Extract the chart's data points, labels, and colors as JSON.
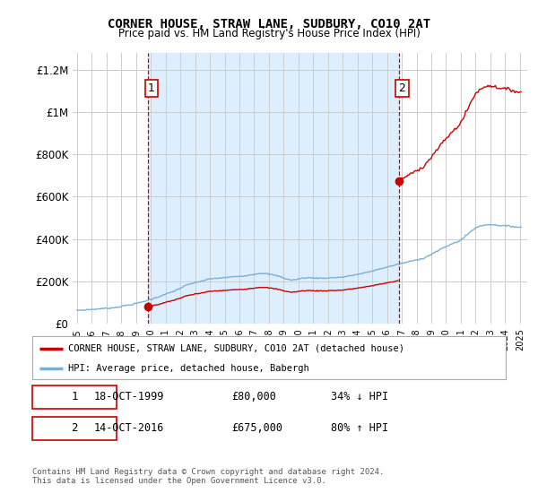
{
  "title": "CORNER HOUSE, STRAW LANE, SUDBURY, CO10 2AT",
  "subtitle": "Price paid vs. HM Land Registry's House Price Index (HPI)",
  "ylabel_ticks": [
    0,
    200000,
    400000,
    600000,
    800000,
    1000000,
    1200000
  ],
  "ylabel_labels": [
    "£0",
    "£200K",
    "£400K",
    "£600K",
    "£800K",
    "£1M",
    "£1.2M"
  ],
  "xlim": [
    1994.7,
    2025.5
  ],
  "ylim": [
    0,
    1280000
  ],
  "sale1_year": 1999.79,
  "sale1_price": 80000,
  "sale2_year": 2016.79,
  "sale2_price": 675000,
  "line_color_red": "#cc0000",
  "line_color_blue": "#7bafd4",
  "highlight_color": "#ddeeff",
  "legend_label1": "CORNER HOUSE, STRAW LANE, SUDBURY, CO10 2AT (detached house)",
  "legend_label2": "HPI: Average price, detached house, Babergh",
  "table_row1_date": "18-OCT-1999",
  "table_row1_price": "£80,000",
  "table_row1_hpi": "34% ↓ HPI",
  "table_row2_date": "14-OCT-2016",
  "table_row2_price": "£675,000",
  "table_row2_hpi": "80% ↑ HPI",
  "footnote": "Contains HM Land Registry data © Crown copyright and database right 2024.\nThis data is licensed under the Open Government Licence v3.0.",
  "background_color": "#ffffff",
  "grid_color": "#cccccc"
}
